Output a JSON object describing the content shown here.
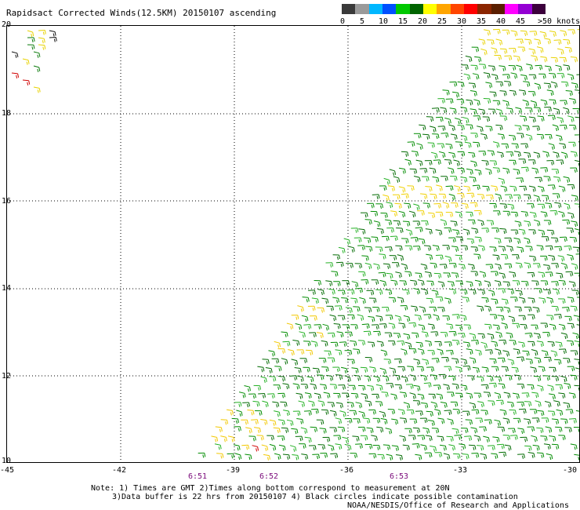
{
  "title": "Rapidsact Corrected Winds(12.5KM) 20150107 ascending",
  "legend": {
    "colors": [
      "#3a3a3a",
      "#9a9a9a",
      "#00b7ff",
      "#0050ff",
      "#00c800",
      "#006400",
      "#ffff00",
      "#ffa500",
      "#ff4500",
      "#ff0000",
      "#8b2500",
      "#5a1e00",
      "#ff00ff",
      "#9400d3",
      "#3c003c"
    ],
    "labels": [
      "0",
      "5",
      "10",
      "15",
      "20",
      "25",
      "30",
      "35",
      "40",
      "45",
      ">50 knots"
    ]
  },
  "axes": {
    "y_labels": [
      "20",
      "18",
      "16",
      "14",
      "12",
      "10"
    ],
    "x_labels": [
      "-45",
      "-42",
      "-39",
      "-36",
      "-33",
      "-30"
    ],
    "times": [
      "6:51",
      "6:52",
      "6:53"
    ]
  },
  "notes": {
    "line1": "Note: 1) Times are GMT 2)Times along bottom correspond to measurement at 20N",
    "line2": "3)Data buffer is 22 hrs from 20150107 4) Black circles indicate possible contamination",
    "credit": "NOAA/NESDIS/Office of Research and Applications"
  }
}
